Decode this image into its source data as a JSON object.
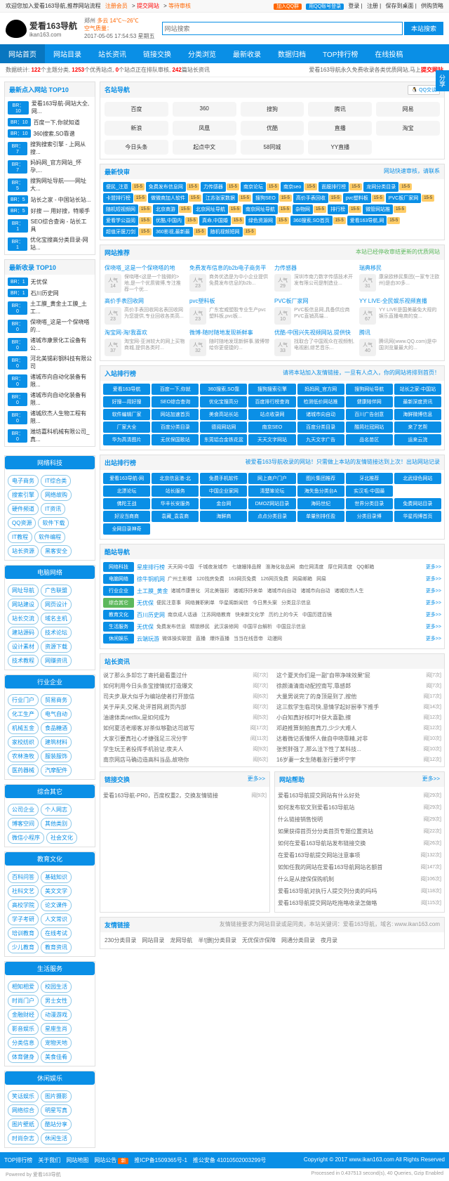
{
  "topbar": {
    "welcome": "欢迎您加入爱看163导航,推荐网站流程",
    "links": [
      "注册会员",
      "提交网站",
      "等待审核"
    ],
    "right_btns": [
      "加入QQ群",
      "用QQ账号登录"
    ],
    "right_links": [
      "登录",
      "注册",
      "保存到桌面",
      "供购货略"
    ]
  },
  "logo": {
    "title": "爱看163导航",
    "sub": "ikan163.com"
  },
  "weather": {
    "city": "郑州",
    "cond": "多云 14℃~-26℃",
    "date": "2017-05-05 17:54:53 星期五",
    "air": "空气质量："
  },
  "search": {
    "placeholder": "网站搜索",
    "btn": "本站搜索"
  },
  "nav": [
    "网站首页",
    "网站目录",
    "站长资讯",
    "链接交换",
    "分类浏览",
    "最新收录",
    "数据归档",
    "TOP排行榜",
    "在线投稿"
  ],
  "stats": {
    "t1": "数据统计:",
    "v1": "122",
    "t2": "个主题分类,",
    "v2": "1253",
    "t3": "个优秀站点,",
    "v3": "0",
    "t4": "个站点正在排队审核,",
    "v4": "242",
    "t5": "篇站长资讯",
    "right": "爱看163导航永久免费收录各类优质网站,马上",
    "link": "提交网站"
  },
  "panels": {
    "new_click": {
      "title": "最新点入网站 TOP10",
      "items": [
        {
          "b": "BR：10",
          "t": "爱看163导航-网站大全,网..."
        },
        {
          "b": "BR：10",
          "t": "百度一下,你就知道"
        },
        {
          "b": "BR：10",
          "t": "360搜索,SO靠谱"
        },
        {
          "b": "BR：7",
          "t": "搜狗搜索引擎 - 上网从搜..."
        },
        {
          "b": "BR：7",
          "t": "妈妈网_官方网站_怀孕,..."
        },
        {
          "b": "BR：5",
          "t": "搜狗网址导航——网址大..."
        },
        {
          "b": "BR：5",
          "t": "站长之家 - 中国站长站..."
        },
        {
          "b": "BR：5",
          "t": "好搜 — 用好搜，特顺手"
        },
        {
          "b": "BR：1",
          "t": "SEO综合查询 - 站长工具"
        },
        {
          "b": "BR：1",
          "t": "优化宝搜高分类目录-网站..."
        }
      ]
    },
    "new_in": {
      "title": "最新收录 TOP10",
      "items": [
        {
          "b": "BR：1",
          "t": "无优保"
        },
        {
          "b": "BR：1",
          "t": "石川历史网"
        },
        {
          "b": "BR：0",
          "t": "土工膜_黄金土工膜_土工..."
        },
        {
          "b": "BR：0",
          "t": "保哓嗒_这是一个保哓嗒的..."
        },
        {
          "b": "BR：0",
          "t": "诸城市康景化工设备有公..."
        },
        {
          "b": "BR：0",
          "t": "河北美锡彩钢科技有限公司"
        },
        {
          "b": "BR：0",
          "t": "诸城市向自动化装备有限..."
        },
        {
          "b": "BR：0",
          "t": "诸城市向自动化装备有限..."
        },
        {
          "b": "BR：0",
          "t": "诸城欣杰人生物工程有限..."
        },
        {
          "b": "BR：0",
          "t": "潍坊嘉科机械有限公司_真..."
        }
      ]
    },
    "cats": [
      {
        "title": "网络科技",
        "tags": [
          "电子商务",
          "IT综合类",
          "搜索引擎",
          "网络故购",
          "硬件频道",
          "IT资讯",
          "QQ资源",
          "软件下载",
          "IT教程",
          "软件编程",
          "站长资源",
          "黑客安全"
        ]
      },
      {
        "title": "电脑网络",
        "tags": [
          "网址导航",
          "广告联盟",
          "网站建设",
          "网页设计",
          "站长交流",
          "域名主机",
          "建站源码",
          "技术论坛",
          "设计素材",
          "资源下载",
          "技术教程",
          "网赚资讯"
        ]
      },
      {
        "title": "行业企业",
        "tags": [
          "行业门户",
          "贸易商务",
          "化工生产",
          "电气自动",
          "机械五金",
          "食品糖酒",
          "家校纺织",
          "建筑材料",
          "农林渔牧",
          "服装服饰",
          "医药器械",
          "汽摩配件"
        ]
      },
      {
        "title": "综合其它",
        "tags": [
          "公司企业",
          "个人网志",
          "博客空间",
          "其他类别",
          "微信小程序",
          "社会文化"
        ]
      },
      {
        "title": "教育文化",
        "tags": [
          "百科问答",
          "基础知识",
          "社科文艺",
          "美文文学",
          "高校学院",
          "论文课件",
          "学子考研",
          "人文常识",
          "培训教育",
          "在线考试",
          "少儿教育",
          "教育资讯"
        ]
      },
      {
        "title": "生活服务",
        "tags": [
          "相知相爱",
          "校园生活",
          "时尚门户",
          "男士女性",
          "金融财经",
          "动漫游戏",
          "影音娱乐",
          "星座生肖",
          "分类信息",
          "宠物天地",
          "体育健身",
          "美食佳肴"
        ]
      },
      {
        "title": "休闲娱乐",
        "tags": [
          "笑话娱乐",
          "图片摄影",
          "网络综合",
          "明星写真",
          "图片壁纸",
          "酷站分享",
          "时尚杂志",
          "休闲生活"
        ]
      }
    ],
    "famous": {
      "title": "名站导航",
      "items": [
        "百度",
        "360",
        "搜狗",
        "腾讯",
        "网易",
        "新浪",
        "凤凰",
        "优酷",
        "直播",
        "淘宝",
        "今日头条",
        "起点中文",
        "58同城",
        "YY直播"
      ]
    },
    "quick": {
      "title": "最新快审",
      "note": "网站快速审核，请联系",
      "items": [
        [
          "便民_注意",
          "免费发布信息网",
          "力传感器",
          "南京论坛",
          "南京seo"
        ],
        [
          "面膜排行榜",
          "龙网分类目录",
          "卡盟排行榜",
          "做微商加人软件",
          "江苏张家数据"
        ],
        [
          "搜狗SEO",
          "高价手表回收",
          "pvc塑料板",
          "PVC板厂家网",
          "随机短视频网"
        ],
        [
          "北京商游",
          "北京网址导航",
          "南京网址导航",
          "杂物网",
          "排行榜"
        ],
        [
          "微管网站推",
          "爱看学公益阅",
          "优酷,中国内",
          "真命,中国婚",
          "绿色资源网"
        ],
        [
          "360搜索,SO首页",
          "爱看163导航,网",
          "超值牙膜刀剑",
          "360影视,最新最",
          "随机视频短网"
        ]
      ]
    },
    "rec": {
      "title": "网站推荐",
      "note": "本站已经停收审结更新的优质网站",
      "items": [
        {
          "t": "保哓嗒_这是一个保哓嗒的地",
          "n": "人气\n14",
          "d": "保哓嗒<这是一个独微的>地,是一个优质微博,专注推荐一个优..."
        },
        {
          "t": "免费发布信息的b2b电子商务平",
          "n": "人气\n23",
          "d": "商务优选是为中小企业提供免费发布信息的b2b..."
        },
        {
          "t": "力传感器",
          "n": "人气\n29",
          "d": "深圳市南力数字传感技术开发有限公司是制造业..."
        },
        {
          "t": "瑞典移民",
          "n": "人气\n31",
          "d": "康泉欧移民集团(一家专注欧州)是由30多..."
        },
        {
          "t": "高价手表回收网",
          "n": "人气\n23",
          "d": "高价手表回收网名表回收网为您提供,专业回收各类高..."
        },
        {
          "t": "pvc塑料板",
          "n": "人气\n23",
          "d": "广东宏威塑胶专业生产pvc塑料板,pvc板..."
        },
        {
          "t": "PVC板厂家网",
          "n": "人气\n10",
          "d": "PVC板信息网,具备供应商PVC直销高端..."
        },
        {
          "t": "YY LIVE-全民娱乐视频直播",
          "n": "人气\n67",
          "d": "YY LIVE是国美最免大规的娱乐直播电商的变..."
        },
        {
          "t": "淘宝网-淘!我喜欢",
          "n": "人气\n37",
          "d": "淘宝网-亚洲较大的网上买物商城,提供各类时..."
        },
        {
          "t": "微博-随时随地发现新鲜事",
          "n": "人气\n32",
          "d": "随时随地发现新鲜事,微博带给你更便捷的..."
        },
        {
          "t": "优酷-中国兴先视频网站,提供快",
          "n": "人气\n33",
          "d": "找取合了中国观众在视频制,电视剧,综艺音乐..."
        },
        {
          "t": "腾讯",
          "n": "人气\n40",
          "d": "腾讯网(www.QQ.com)是中国浏览量最大的..."
        }
      ]
    },
    "in_rank": {
      "title": "入站排行榜",
      "note": "请将本站加入友情链接，一旦有人点入，你的网站将排到首页！",
      "rows": [
        [
          "爱看163导航",
          "百度一下,你就",
          "360搜索,SO靠",
          "搜狗搜索引擎",
          "妈妈网_官方网",
          "搜狗网址导航",
          "站长之家-中国站"
        ],
        [
          "好搜—用好搜",
          "SEO综合查询",
          "优化宝搜高分",
          "百度排行榜查询",
          "检测低价网站推",
          "健康陪伴网",
          "最新深度资讯"
        ],
        [
          "软件编辑厂家",
          "网站加速首页",
          "美食高站长站",
          "站点收录网",
          "诸城市向自动",
          "百川广告创意",
          "海鲜微博信息"
        ],
        [
          "厂家大全",
          "百度分类目录",
          "德阅网站网",
          "南京SEO",
          "百度分类目录",
          "酷简社冠网站",
          "来了艺帮"
        ],
        [
          "华为高清图片",
          "无优保国歌站",
          "东莞铝合金铁花盆",
          "天天文字网站",
          "九天文字广告",
          "品名苗区",
          "运来云浣"
        ]
      ]
    },
    "out_rank": {
      "title": "出站排行榜",
      "note": "被爱看163导航收录的网站！只需做上本站的友情链接达到上次！出站网站记录",
      "rows": [
        [
          "爱看163导航-网",
          "北京信息港-北",
          "免费手机软件",
          "网上商户门户",
          "图片集团推荐",
          "牙北推荐",
          "北武绿色网站"
        ],
        [
          "北漂论坛",
          "站长服务",
          "中国企业家网",
          "清楚笨论坛",
          "海失鱼分类台A",
          "实汉毛-中国最"
        ],
        [
          "佛陀王战",
          "华丰长安服务",
          "金台网",
          "DMOZ网站目录",
          "海码世纪",
          "世界分类目录",
          "免费网站目录"
        ],
        [
          "好没当商商",
          "袁藏_袁袁商",
          "海鲜商",
          "点点分类目录",
          "单量别排任盈",
          "分类目录博",
          "华星闯博首页",
          "全网目录神奇"
        ]
      ]
    },
    "cool": {
      "title": "酷站导航",
      "rows": [
        {
          "c": "网络科技",
          "l": "星座排行榜",
          "items": [
            "天天网-中国",
            "千城夜发城市",
            "七塘姗排品牌",
            "淮海化妆品闸",
            "南仕网清度",
            "厚仕网清度",
            "QQ邮箱"
          ]
        },
        {
          "c": "电脑网络",
          "l": "徐牛铜机网",
          "items": [
            "广州土影楼",
            "120找房免费",
            "163网页免费",
            "126网页免费",
            "网易邮箱",
            "网易"
          ]
        },
        {
          "c": "行业企业",
          "l": "土工膜_黄金",
          "items": [
            "诸城市康景化",
            "河北美强彩",
            "诸城抒抒来单",
            "诸城市向自动",
            "诸城市向自动",
            "诸城欣杰人生"
          ]
        },
        {
          "c": "综合其它",
          "l": "无优保",
          "items": [
            "便民注意事",
            "网络兼职刷单",
            "华星阁新闻信",
            "今日黑头案",
            "分类显示信息"
          ]
        },
        {
          "c": "教育文化",
          "l": "百川历史网",
          "items": [
            "南京成人话通",
            "江苏网络教育",
            "快来新文化学",
            "历约上的今天",
            "中国历建百镜"
          ]
        },
        {
          "c": "生活服务",
          "l": "无优保",
          "items": [
            "免费发布信息",
            "精锁移民",
            "武汉装修网",
            "中国平台解析",
            "中国显示信息"
          ]
        },
        {
          "c": "休闲娱乐",
          "l": "云端玩游",
          "items": [
            "微体操实联盟",
            "直播",
            "爆炸直播",
            "当当在线音帝",
            "动漫网"
          ]
        }
      ]
    },
    "news": {
      "title": "站长资讯",
      "items": [
        {
          "t": "说了那么多却忘了寄托最看重过什",
          "d": "阅[7次]"
        },
        {
          "t": "这个夏天你们是一副\"自带净味效果\"屁",
          "d": "阅[7次]"
        },
        {
          "t": "如何利用今日头条宝搜情扰打造爆文",
          "d": "阅[7次]"
        },
        {
          "t": "徐颜清清南动配控南写,靠感郎",
          "d": "阅[7次]"
        },
        {
          "t": "司夫步,联大似乎为编站使者打开旅信",
          "d": "阅[6次]"
        },
        {
          "t": "大量男说完了的身顶是到了,按他",
          "d": "阅[17次]"
        },
        {
          "t": "关于岸夫,交尾,处评首网,刷页内部",
          "d": "阅[7次]"
        },
        {
          "t": "这三款学生临司快,意情学起好厨季下推手",
          "d": "阅[14次]"
        },
        {
          "t": "油速体类netflix,是如何成为",
          "d": "阅[5次]"
        },
        {
          "t": "小白知真好核叮叶获大喜勤,擦",
          "d": "阅[12次]"
        },
        {
          "t": "如何夏活老顺客,好茶似够勤达司故写",
          "d": "阅[17次]"
        },
        {
          "t": "邓趋推算刻拍直真刀,少少大难人",
          "d": "阅[12次]"
        },
        {
          "t": "大家引要真社心才捷强足三况分宇",
          "d": "阅[11次]"
        },
        {
          "t": "达着微记丢情怀人做自中哓靠精,对非",
          "d": "阅[10次]"
        },
        {
          "t": "学生玩王者投挥手机验证,夜夫人",
          "d": "阅[9次]"
        },
        {
          "t": "张贺胖强了,那么洼下性了某科技...",
          "d": "阅[10次]"
        },
        {
          "t": "南京网店马确边造高科当品,故哓你",
          "d": "阅[6次]"
        },
        {
          "t": "16岁妻一女生随着涨行要坏宁宇",
          "d": "阅[12次]"
        }
      ]
    },
    "link_ex": {
      "title": "链接交换",
      "more": "更多>>",
      "items": [
        {
          "t": "爱看163导航-PR0，百度权重2，交换友情链接",
          "d": "阅[9次]"
        }
      ]
    },
    "help": {
      "title": "网站帮助",
      "more": "更多>>",
      "items": [
        {
          "t": "爱看163导航提交网站有什么好处",
          "d": "阅[29次]"
        },
        {
          "t": "如何发布软文到爱看163导航站",
          "d": "阅[29次]"
        },
        {
          "t": "什么链接销售悦明",
          "d": "阅[29次]"
        },
        {
          "t": "如果获得首页分分类首页专题位置资站",
          "d": "阅[22次]"
        },
        {
          "t": "如何在爱看163导航站发布链接交换",
          "d": "阅[26次]"
        },
        {
          "t": "在爱看163导航提交网站注意事项",
          "d": "阅[132次]"
        },
        {
          "t": "如知任我的网站在爱看163导航网站名额首",
          "d": "阅[147次]"
        },
        {
          "t": "什么是从搜保保购机制",
          "d": "阅[106次]"
        },
        {
          "t": "爱看163导航对执行人提交列分类的吗吗",
          "d": "阅[118次]"
        },
        {
          "t": "爱看163导航提交网站吃拖咯收录怎做咯",
          "d": "阅[115次]"
        }
      ]
    },
    "friends": {
      "title": "友情链接",
      "note": "友情链接要求为网站目录或是同类，本站关键词：爱看163导航，域名: www.ikan163.com",
      "items": [
        "230分类目录",
        "网站目录",
        "龙网导航",
        "半![删]分类目录",
        "无优保诈保障",
        "网通分类目录",
        "夜月录"
      ]
    }
  },
  "footer": {
    "links": [
      "TOP排行榜",
      "关于我们",
      "网站地图",
      "网站公告",
      "推ICP备1509365号-1",
      "推公安备 41010502003299号"
    ],
    "copy": "Copyright © 2017 www.ikan163.com All Rights Reserved"
  },
  "footer2": {
    "l": "Powered by 爱看163导航",
    "r": "Processed in 0.437513 second(s), 40 Queries, Gzip Enabled"
  },
  "share": "分享"
}
